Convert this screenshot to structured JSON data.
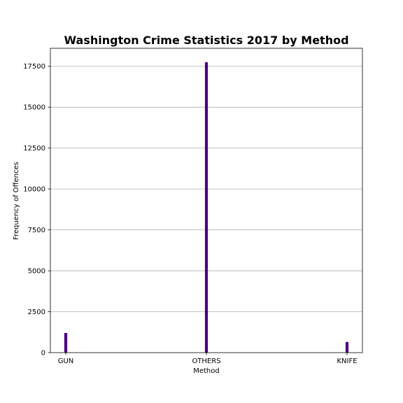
{
  "chart_data": {
    "type": "bar",
    "title": "Washington Crime Statistics 2017 by Method",
    "xlabel": "Method",
    "ylabel": "Frequency of Offences",
    "categories": [
      "GUN",
      "OTHERS",
      "KNIFE"
    ],
    "values": [
      1200,
      17750,
      650
    ],
    "ylim": [
      0,
      18600
    ],
    "yticks": [
      0,
      2500,
      5000,
      7500,
      10000,
      12500,
      15000,
      17500
    ],
    "grid": "horizontal",
    "bar_color": "#4b0082"
  }
}
